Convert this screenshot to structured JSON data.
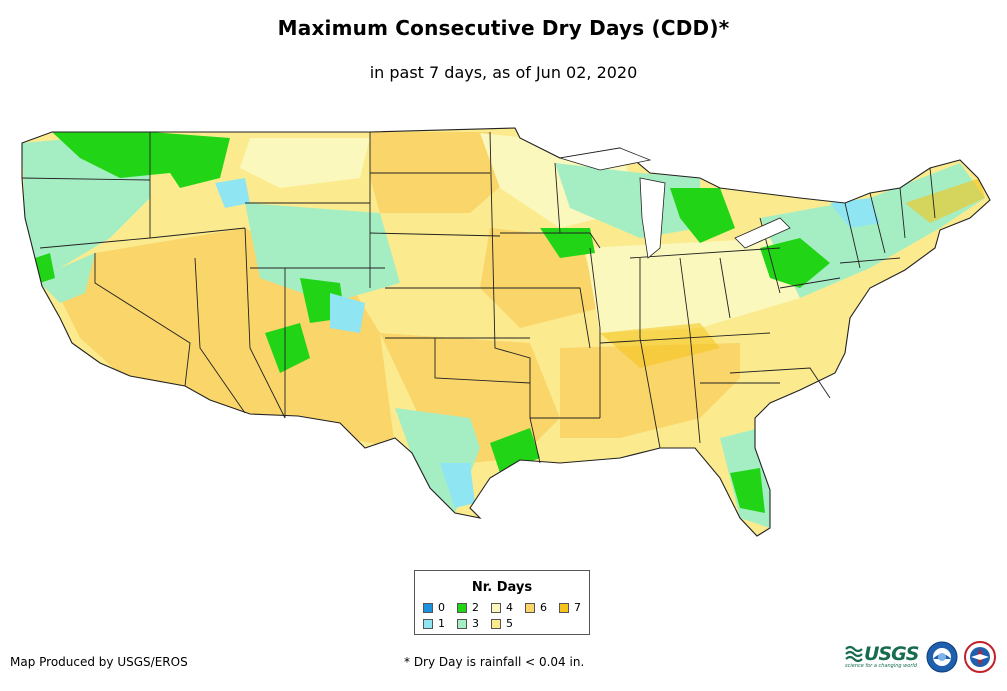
{
  "title": "Maximum Consecutive Dry Days (CDD)*",
  "subtitle": "in past 7 days, as of Jun 02, 2020",
  "legend": {
    "title": "Nr. Days",
    "items": [
      {
        "label": "0",
        "color": "#1e90e0"
      },
      {
        "label": "1",
        "color": "#8fe6f2"
      },
      {
        "label": "2",
        "color": "#22d416"
      },
      {
        "label": "3",
        "color": "#a5eec4"
      },
      {
        "label": "4",
        "color": "#fbf8bd"
      },
      {
        "label": "5",
        "color": "#fbeb8e"
      },
      {
        "label": "6",
        "color": "#f9d56a"
      },
      {
        "label": "7",
        "color": "#f5c319"
      }
    ]
  },
  "footer": {
    "credit": "Map Produced by USGS/EROS",
    "note": "* Dry Day is rainfall < 0.04 in."
  },
  "logos": {
    "usgs": {
      "name": "usgs-logo",
      "text": "USGS",
      "tagline": "science for a changing world",
      "color": "#176b4e"
    },
    "noaa": {
      "name": "noaa-seal"
    },
    "nws": {
      "name": "nws-seal"
    }
  }
}
